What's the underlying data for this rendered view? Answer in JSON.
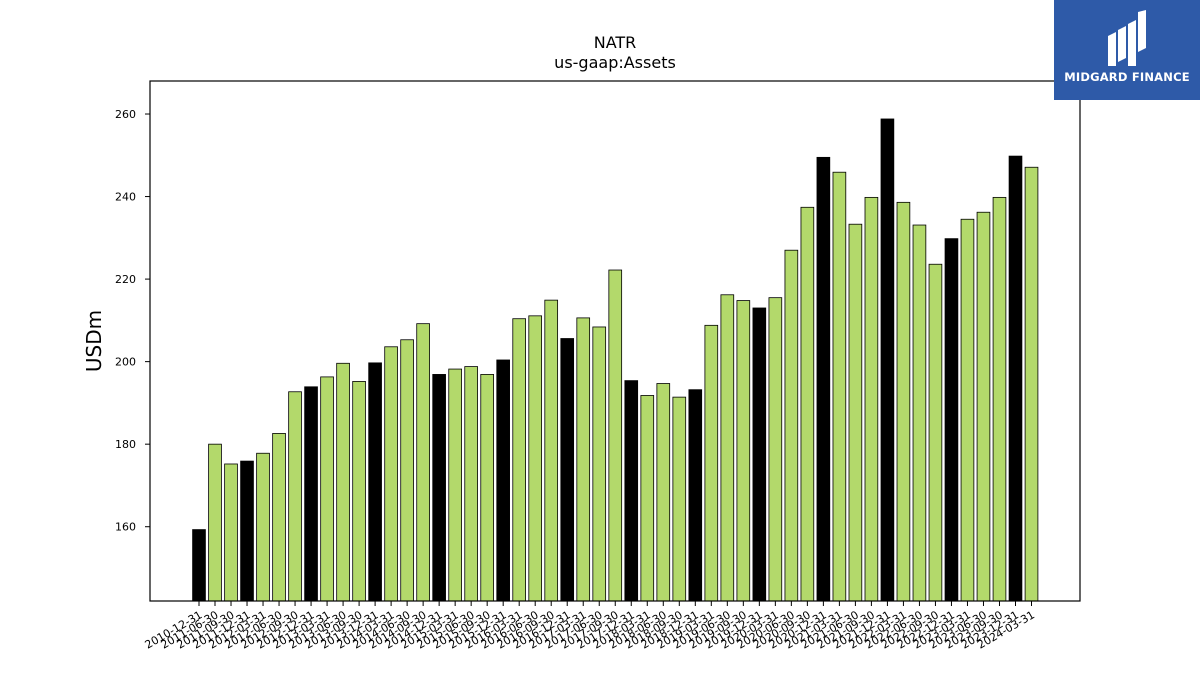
{
  "colors": {
    "year_end": "#000000",
    "quarter": "#b3d96b",
    "bar_edge": "#000000",
    "logo_bg": "#2e5aa8"
  },
  "logo": {
    "text": "MIDGARD FINANCE",
    "icon": "midgard-logo-icon"
  },
  "chart_data": {
    "type": "bar",
    "title": "NATR",
    "subtitle": "us-gaap:Assets",
    "xlabel": "",
    "ylabel": "USDm",
    "ylim": [
      142,
      268
    ],
    "yticks": [
      160,
      180,
      200,
      220,
      240,
      260
    ],
    "grid": false,
    "categories": [
      "2010-12-31",
      "2011-06-30",
      "2011-09-30",
      "2011-12-31",
      "2012-03-31",
      "2012-06-30",
      "2012-09-30",
      "2012-12-31",
      "2013-03-31",
      "2013-06-30",
      "2013-09-30",
      "2013-12-31",
      "2014-03-31",
      "2014-06-30",
      "2014-09-30",
      "2014-12-31",
      "2015-03-31",
      "2015-06-30",
      "2015-09-30",
      "2015-12-31",
      "2016-03-31",
      "2016-06-30",
      "2016-09-30",
      "2016-12-31",
      "2017-03-31",
      "2017-06-30",
      "2017-09-30",
      "2017-12-31",
      "2018-03-31",
      "2018-06-30",
      "2018-09-30",
      "2018-12-31",
      "2019-03-31",
      "2019-06-30",
      "2019-09-30",
      "2019-12-31",
      "2020-03-31",
      "2020-06-30",
      "2020-09-30",
      "2020-12-31",
      "2021-03-31",
      "2021-06-30",
      "2021-09-30",
      "2021-12-31",
      "2022-03-31",
      "2022-06-30",
      "2022-09-30",
      "2022-12-31",
      "2023-03-31",
      "2023-06-30",
      "2023-09-30",
      "2023-12-31",
      "2024-03-31"
    ],
    "values": [
      159.3,
      180.0,
      175.2,
      175.9,
      177.8,
      182.6,
      192.7,
      193.9,
      196.3,
      199.6,
      195.2,
      199.7,
      203.6,
      205.3,
      209.2,
      196.9,
      198.2,
      198.8,
      196.9,
      200.4,
      210.4,
      211.1,
      214.9,
      205.6,
      210.6,
      208.4,
      222.2,
      195.4,
      191.8,
      194.7,
      191.4,
      193.2,
      208.8,
      216.2,
      214.8,
      213.0,
      215.5,
      227.0,
      237.4,
      249.5,
      245.9,
      233.3,
      239.8,
      258.8,
      238.6,
      233.1,
      223.6,
      229.8,
      234.5,
      236.2,
      239.8,
      249.8,
      247.1
    ],
    "year_end_flags": [
      true,
      false,
      false,
      true,
      false,
      false,
      false,
      true,
      false,
      false,
      false,
      true,
      false,
      false,
      false,
      true,
      false,
      false,
      false,
      true,
      false,
      false,
      false,
      true,
      false,
      false,
      false,
      true,
      false,
      false,
      false,
      true,
      false,
      false,
      false,
      true,
      false,
      false,
      false,
      true,
      false,
      false,
      false,
      true,
      false,
      false,
      false,
      true,
      false,
      false,
      false,
      true,
      false
    ]
  }
}
